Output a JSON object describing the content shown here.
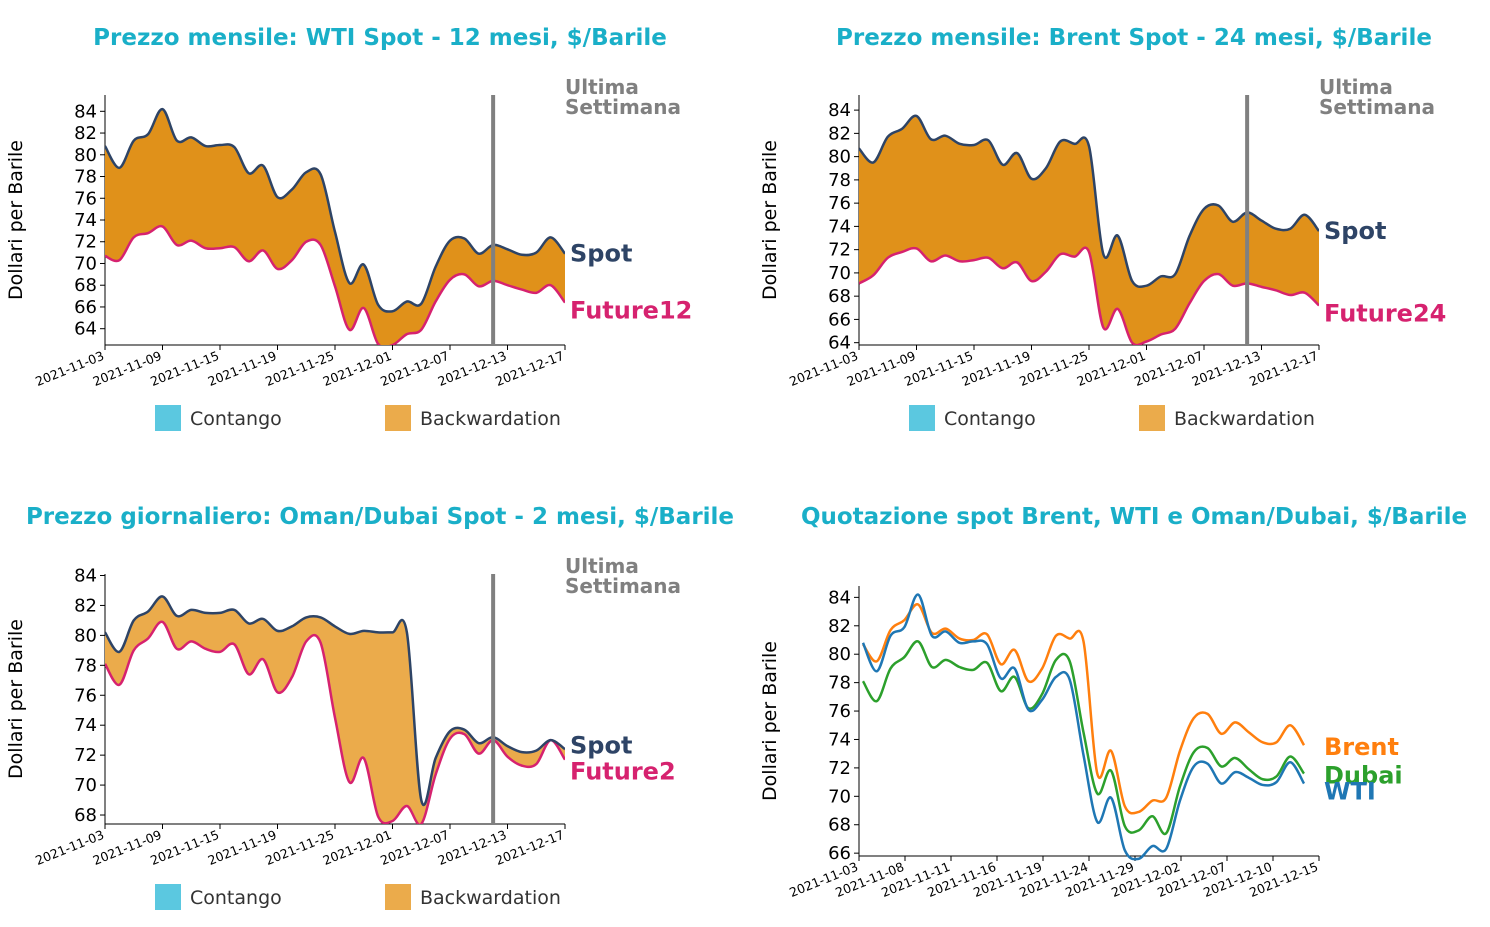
{
  "colors": {
    "title": "#1aafc8",
    "spot": "#2e4466",
    "future": "#d6226f",
    "contango": "#5bc8e0",
    "backwardation_dark": "#e0911a",
    "backwardation_light": "#ebab4b",
    "marker": "#808080",
    "brent": "#ff7f0e",
    "dubai": "#2ca02c",
    "wti": "#1f77b4"
  },
  "legend": {
    "contango": "Contango",
    "backwardation": "Backwardation"
  },
  "chart_data": [
    {
      "id": "wti",
      "type": "area",
      "title": "Prezzo mensile: WTI Spot - 12 mesi, $/Barile",
      "ylabel": "Dollari per Barile",
      "ylim": [
        62.5,
        85.5
      ],
      "yticks": [
        64,
        66,
        68,
        70,
        72,
        74,
        76,
        78,
        80,
        82,
        84
      ],
      "xticks": [
        "2021-11-03",
        "2021-11-09",
        "2021-11-15",
        "2021-11-19",
        "2021-11-25",
        "2021-12-01",
        "2021-12-07",
        "2021-12-13",
        "2021-12-17"
      ],
      "marker_label_1": "Ultima",
      "marker_label_2": "Settimana",
      "marker_x": 27,
      "spot_label": "Spot",
      "future_label": "Future12",
      "spot": [
        80.8,
        78.8,
        81.3,
        81.9,
        84.2,
        81.3,
        81.6,
        80.8,
        80.9,
        80.7,
        78.3,
        79.0,
        76.1,
        76.8,
        78.4,
        78.2,
        72.9,
        68.2,
        69.9,
        66.2,
        65.6,
        66.5,
        66.3,
        69.7,
        72.1,
        72.3,
        70.9,
        71.7,
        71.3,
        70.8,
        71.0,
        72.4,
        70.9
      ],
      "future": [
        70.7,
        70.3,
        72.4,
        72.8,
        73.4,
        71.7,
        72.1,
        71.4,
        71.4,
        71.5,
        70.2,
        71.2,
        69.5,
        70.3,
        72.0,
        71.7,
        67.9,
        63.9,
        65.9,
        62.6,
        62.5,
        63.5,
        63.9,
        66.5,
        68.5,
        69.0,
        67.9,
        68.4,
        68.0,
        67.6,
        67.3,
        68.0,
        66.4
      ]
    },
    {
      "id": "brent",
      "type": "area",
      "title": "Prezzo mensile: Brent Spot - 24 mesi, $/Barile",
      "ylabel": "Dollari per Barile",
      "ylim": [
        63.8,
        85.3
      ],
      "yticks": [
        64,
        66,
        68,
        70,
        72,
        74,
        76,
        78,
        80,
        82,
        84
      ],
      "xticks": [
        "2021-11-03",
        "2021-11-09",
        "2021-11-15",
        "2021-11-19",
        "2021-11-25",
        "2021-12-01",
        "2021-12-07",
        "2021-12-13",
        "2021-12-17"
      ],
      "marker_label_1": "Ultima",
      "marker_label_2": "Settimana",
      "marker_x": 27,
      "spot_label": "Spot",
      "future_label": "Future24",
      "spot": [
        80.7,
        79.5,
        81.7,
        82.4,
        83.5,
        81.5,
        81.8,
        81.1,
        81.0,
        81.4,
        79.3,
        80.3,
        78.1,
        79.0,
        81.3,
        81.1,
        80.9,
        71.6,
        73.2,
        69.3,
        68.9,
        69.7,
        69.9,
        73.2,
        75.5,
        75.8,
        74.4,
        75.2,
        74.5,
        73.8,
        73.8,
        75.0,
        73.6
      ],
      "future": [
        69.1,
        69.8,
        71.3,
        71.8,
        72.1,
        71.0,
        71.5,
        71.0,
        71.1,
        71.3,
        70.4,
        70.9,
        69.3,
        70.1,
        71.6,
        71.4,
        71.8,
        65.3,
        66.9,
        64.0,
        64.1,
        64.7,
        65.2,
        67.4,
        69.3,
        69.9,
        68.9,
        69.1,
        68.8,
        68.5,
        68.1,
        68.3,
        67.2
      ]
    },
    {
      "id": "oman",
      "type": "area",
      "title": "Prezzo giornaliero: Oman/Dubai Spot - 2 mesi, $/Barile",
      "ylabel": "Dollari per Barile",
      "ylim": [
        67.4,
        84.1
      ],
      "yticks": [
        68,
        70,
        72,
        74,
        76,
        78,
        80,
        82,
        84
      ],
      "xticks": [
        "2021-11-03",
        "2021-11-09",
        "2021-11-15",
        "2021-11-19",
        "2021-11-25",
        "2021-12-01",
        "2021-12-07",
        "2021-12-13",
        "2021-12-17"
      ],
      "marker_label_1": "Ultima",
      "marker_label_2": "Settimana",
      "marker_x": 27,
      "spot_label": "Spot",
      "future_label": "Future2",
      "spot": [
        80.2,
        78.9,
        81.0,
        81.6,
        82.6,
        81.3,
        81.7,
        81.5,
        81.5,
        81.7,
        80.8,
        81.1,
        80.3,
        80.6,
        81.2,
        81.2,
        80.6,
        80.1,
        80.3,
        80.2,
        80.2,
        80.2,
        69.0,
        71.8,
        73.6,
        73.7,
        72.8,
        73.2,
        72.6,
        72.2,
        72.3,
        73.0,
        72.4
      ],
      "future": [
        78.1,
        76.7,
        79.0,
        79.8,
        80.9,
        79.1,
        79.6,
        79.1,
        78.9,
        79.4,
        77.4,
        78.4,
        76.2,
        77.2,
        79.6,
        79.5,
        74.5,
        70.2,
        71.8,
        67.9,
        67.6,
        68.6,
        67.4,
        70.7,
        73.1,
        73.4,
        72.1,
        73.0,
        71.9,
        71.3,
        71.4,
        73.0,
        71.7
      ]
    },
    {
      "id": "spot_all",
      "type": "line",
      "title": "Quotazione spot Brent, WTI e Oman/Dubai, $/Barile",
      "ylabel": "Dollari per Barile",
      "ylim": [
        65.8,
        84.8
      ],
      "yticks": [
        66,
        68,
        70,
        72,
        74,
        76,
        78,
        80,
        82,
        84
      ],
      "xticks": [
        "2021-11-03",
        "2021-11-08",
        "2021-11-11",
        "2021-11-16",
        "2021-11-19",
        "2021-11-24",
        "2021-11-29",
        "2021-12-02",
        "2021-12-07",
        "2021-12-10",
        "2021-12-15"
      ],
      "series": [
        {
          "name": "Brent",
          "color_key": "brent",
          "values": [
            80.7,
            79.5,
            81.7,
            82.4,
            83.5,
            81.5,
            81.8,
            81.1,
            81.0,
            81.4,
            79.3,
            80.3,
            78.1,
            79.0,
            81.3,
            81.1,
            80.9,
            71.6,
            73.2,
            69.3,
            68.9,
            69.7,
            69.9,
            73.2,
            75.5,
            75.8,
            74.4,
            75.2,
            74.5,
            73.8,
            73.8,
            75.0,
            73.6
          ]
        },
        {
          "name": "Dubai",
          "color_key": "dubai",
          "values": [
            78.1,
            76.7,
            79.0,
            79.8,
            80.9,
            79.1,
            79.6,
            79.1,
            78.9,
            79.4,
            77.4,
            78.4,
            76.2,
            77.2,
            79.6,
            79.5,
            74.5,
            70.2,
            71.8,
            67.9,
            67.6,
            68.6,
            67.4,
            70.7,
            73.1,
            73.4,
            72.1,
            72.7,
            71.9,
            71.2,
            71.4,
            72.8,
            71.6
          ]
        },
        {
          "name": "WTI",
          "color_key": "wti",
          "values": [
            80.8,
            78.8,
            81.3,
            81.9,
            84.2,
            81.3,
            81.6,
            80.8,
            80.9,
            80.7,
            78.3,
            79.0,
            76.1,
            76.8,
            78.4,
            78.2,
            72.9,
            68.2,
            69.9,
            66.2,
            65.6,
            66.5,
            66.3,
            69.7,
            72.1,
            72.3,
            70.9,
            71.7,
            71.3,
            70.8,
            71.0,
            72.4,
            70.9
          ]
        }
      ]
    }
  ]
}
